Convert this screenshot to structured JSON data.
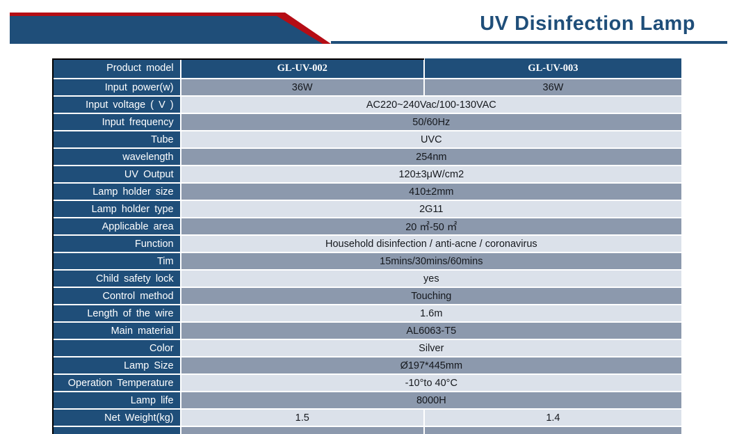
{
  "header": {
    "title": "UV Disinfection Lamp"
  },
  "colors": {
    "navy": "#1f4e79",
    "red": "#b50d15",
    "row_grey": "#8c99ad",
    "row_light": "#dbe1ea"
  },
  "table": {
    "header_row": {
      "label": "Product model",
      "columns": [
        "GL-UV-002",
        "GL-UV-003"
      ]
    },
    "rows": [
      {
        "label": "Input power(w)",
        "values": [
          "36W",
          "36W"
        ]
      },
      {
        "label": "Input voltage ( V )",
        "value": "AC220~240Vac/100-130VAC"
      },
      {
        "label": "Input frequency",
        "value": "50/60Hz"
      },
      {
        "label": "Tube",
        "value": "UVC"
      },
      {
        "label": "wavelength",
        "value": "254nm"
      },
      {
        "label": "UV Output",
        "value": "120±3μW/cm2"
      },
      {
        "label": "Lamp holder size",
        "value": "410±2mm"
      },
      {
        "label": "Lamp holder type",
        "value": "2G11"
      },
      {
        "label": "Applicable area",
        "value": "20 ㎡-50 ㎡"
      },
      {
        "label": "Function",
        "value": "Household disinfection / anti-acne / coronavirus"
      },
      {
        "label": "Tim",
        "value": "15mins/30mins/60mins"
      },
      {
        "label": "Child safety lock",
        "value": "yes"
      },
      {
        "label": "Control method",
        "value": "Touching"
      },
      {
        "label": "Length of the wire",
        "value": "1.6m"
      },
      {
        "label": "Main material",
        "value": "AL6063-T5"
      },
      {
        "label": "Color",
        "value": "Silver"
      },
      {
        "label": "Lamp Size",
        "value": "Ø197*445mm"
      },
      {
        "label": "Operation Temperature",
        "value": "-10°to 40°C"
      },
      {
        "label": "Lamp life",
        "value": "8000H"
      },
      {
        "label": "Net Weight(kg)",
        "values": [
          "1.5",
          "1.4"
        ]
      }
    ],
    "partial_row_visible": true
  }
}
